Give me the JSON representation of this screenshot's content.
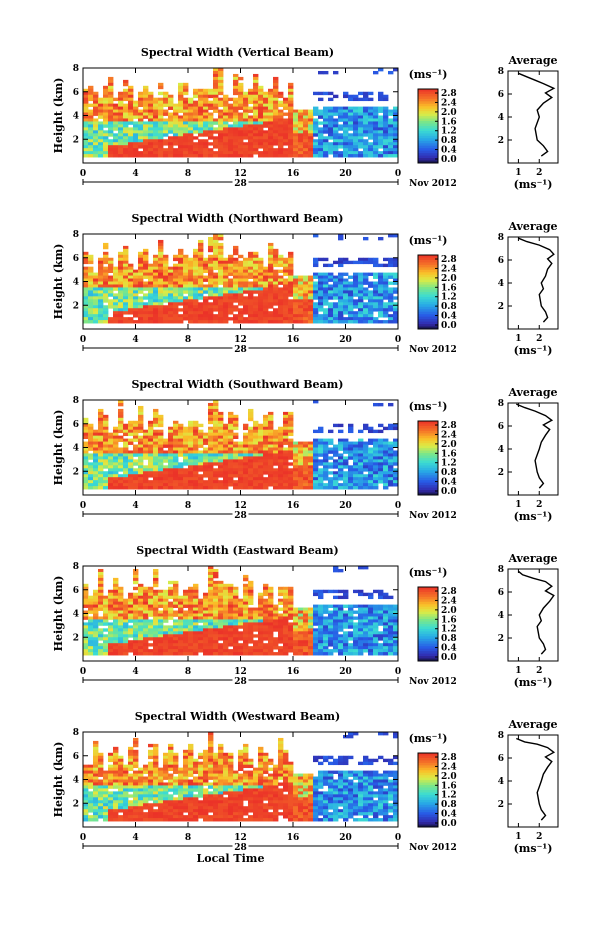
{
  "chart_data": [
    {
      "type": "heatmap",
      "title": "Spectral Width (Vertical Beam)",
      "ylabel": "Height (km)",
      "xticks": [
        "0",
        "4",
        "8",
        "12",
        "16",
        "20",
        "0"
      ],
      "yticks": [
        "8",
        "6",
        "4",
        "2"
      ],
      "date_label": "28",
      "month_label": "Nov 2012",
      "colorbar_unit": "(ms⁻¹)",
      "colorbar_ticks": [
        "2.8",
        "2.4",
        "2.0",
        "1.6",
        "1.2",
        "0.8",
        "0.4",
        "0.0"
      ],
      "profile": {
        "title": "Average",
        "xticks": [
          "1",
          "2"
        ],
        "xlabel": "(ms⁻¹)",
        "yticks": [
          "8",
          "6",
          "4",
          "2"
        ],
        "points": [
          [
            2.1,
            0.6
          ],
          [
            2.4,
            1.0
          ],
          [
            2.2,
            1.5
          ],
          [
            1.9,
            2.0
          ],
          [
            1.8,
            3.0
          ],
          [
            1.9,
            3.5
          ],
          [
            2.0,
            4.0
          ],
          [
            1.9,
            4.6
          ],
          [
            2.2,
            5.2
          ],
          [
            2.6,
            5.7
          ],
          [
            2.3,
            6.1
          ],
          [
            2.7,
            6.5
          ],
          [
            2.2,
            6.9
          ],
          [
            1.8,
            7.2
          ],
          [
            1.4,
            7.5
          ],
          [
            1.0,
            7.8
          ]
        ]
      }
    },
    {
      "type": "heatmap",
      "title": "Spectral Width (Northward Beam)",
      "ylabel": "Height (km)",
      "xticks": [
        "0",
        "4",
        "8",
        "12",
        "16",
        "20",
        "0"
      ],
      "yticks": [
        "8",
        "6",
        "4",
        "2"
      ],
      "date_label": "28",
      "month_label": "Nov 2012",
      "colorbar_unit": "(ms⁻¹)",
      "colorbar_ticks": [
        "2.8",
        "2.4",
        "2.0",
        "1.6",
        "1.2",
        "0.8",
        "0.4",
        "0.0"
      ],
      "profile": {
        "title": "Average",
        "xticks": [
          "1",
          "2"
        ],
        "xlabel": "(ms⁻¹)",
        "yticks": [
          "8",
          "6",
          "4",
          "2"
        ],
        "points": [
          [
            2.2,
            0.6
          ],
          [
            2.4,
            1.0
          ],
          [
            2.3,
            1.5
          ],
          [
            2.1,
            2.0
          ],
          [
            2.0,
            3.0
          ],
          [
            2.2,
            3.5
          ],
          [
            2.1,
            4.0
          ],
          [
            2.3,
            4.6
          ],
          [
            2.4,
            5.2
          ],
          [
            2.6,
            5.7
          ],
          [
            2.4,
            6.1
          ],
          [
            2.7,
            6.5
          ],
          [
            2.5,
            6.9
          ],
          [
            2.0,
            7.3
          ],
          [
            1.4,
            7.6
          ],
          [
            1.0,
            7.9
          ]
        ]
      }
    },
    {
      "type": "heatmap",
      "title": "Spectral Width (Southward Beam)",
      "ylabel": "Height (km)",
      "xticks": [
        "0",
        "4",
        "8",
        "12",
        "16",
        "20",
        "0"
      ],
      "yticks": [
        "8",
        "6",
        "4",
        "2"
      ],
      "date_label": "28",
      "month_label": "Nov 2012",
      "colorbar_unit": "(ms⁻¹)",
      "colorbar_ticks": [
        "2.8",
        "2.4",
        "2.0",
        "1.6",
        "1.2",
        "0.8",
        "0.4",
        "0.0"
      ],
      "profile": {
        "title": "Average",
        "xticks": [
          "1",
          "2"
        ],
        "xlabel": "(ms⁻¹)",
        "yticks": [
          "8",
          "6",
          "4",
          "2"
        ],
        "points": [
          [
            2.0,
            0.6
          ],
          [
            2.2,
            1.0
          ],
          [
            2.0,
            1.5
          ],
          [
            1.9,
            2.0
          ],
          [
            1.8,
            3.0
          ],
          [
            1.9,
            3.5
          ],
          [
            2.0,
            4.0
          ],
          [
            2.1,
            4.6
          ],
          [
            2.3,
            5.2
          ],
          [
            2.5,
            5.7
          ],
          [
            2.2,
            6.1
          ],
          [
            2.6,
            6.5
          ],
          [
            2.3,
            6.9
          ],
          [
            1.8,
            7.3
          ],
          [
            1.3,
            7.6
          ],
          [
            0.9,
            7.9
          ]
        ]
      }
    },
    {
      "type": "heatmap",
      "title": "Spectral Width (Eastward Beam)",
      "ylabel": "Height (km)",
      "xticks": [
        "0",
        "4",
        "8",
        "12",
        "16",
        "20",
        "0"
      ],
      "yticks": [
        "8",
        "6",
        "4",
        "2"
      ],
      "date_label": "28",
      "month_label": "Nov 2012",
      "colorbar_unit": "(ms⁻¹)",
      "colorbar_ticks": [
        "2.8",
        "2.4",
        "2.0",
        "1.6",
        "1.2",
        "0.8",
        "0.4",
        "0.0"
      ],
      "profile": {
        "title": "Average",
        "xticks": [
          "1",
          "2"
        ],
        "xlabel": "(ms⁻¹)",
        "yticks": [
          "8",
          "6",
          "4",
          "2"
        ],
        "points": [
          [
            2.1,
            0.6
          ],
          [
            2.3,
            1.0
          ],
          [
            2.2,
            1.5
          ],
          [
            2.0,
            2.0
          ],
          [
            1.9,
            3.0
          ],
          [
            2.1,
            3.5
          ],
          [
            2.0,
            4.0
          ],
          [
            2.2,
            4.6
          ],
          [
            2.5,
            5.2
          ],
          [
            2.7,
            5.7
          ],
          [
            2.3,
            6.1
          ],
          [
            2.6,
            6.5
          ],
          [
            2.3,
            6.9
          ],
          [
            1.7,
            7.2
          ],
          [
            1.2,
            7.5
          ],
          [
            1.0,
            7.8
          ]
        ]
      }
    },
    {
      "type": "heatmap",
      "title": "Spectral Width (Westward Beam)",
      "ylabel": "Height (km)",
      "xlabel": "Local Time",
      "xticks": [
        "0",
        "4",
        "8",
        "12",
        "16",
        "20",
        "0"
      ],
      "yticks": [
        "8",
        "6",
        "4",
        "2"
      ],
      "date_label": "28",
      "month_label": "Nov 2012",
      "colorbar_unit": "(ms⁻¹)",
      "colorbar_ticks": [
        "2.8",
        "2.4",
        "2.0",
        "1.6",
        "1.2",
        "0.8",
        "0.4",
        "0.0"
      ],
      "profile": {
        "title": "Average",
        "xticks": [
          "1",
          "2"
        ],
        "xlabel": "(ms⁻¹)",
        "yticks": [
          "8",
          "6",
          "4",
          "2"
        ],
        "points": [
          [
            2.1,
            0.6
          ],
          [
            2.3,
            1.0
          ],
          [
            2.1,
            1.5
          ],
          [
            2.0,
            2.0
          ],
          [
            1.9,
            3.0
          ],
          [
            2.0,
            3.5
          ],
          [
            2.1,
            4.0
          ],
          [
            2.2,
            4.6
          ],
          [
            2.4,
            5.2
          ],
          [
            2.6,
            5.7
          ],
          [
            2.3,
            6.1
          ],
          [
            2.7,
            6.5
          ],
          [
            2.4,
            6.9
          ],
          [
            1.9,
            7.2
          ],
          [
            1.3,
            7.4
          ],
          [
            0.9,
            7.7
          ]
        ]
      }
    }
  ]
}
